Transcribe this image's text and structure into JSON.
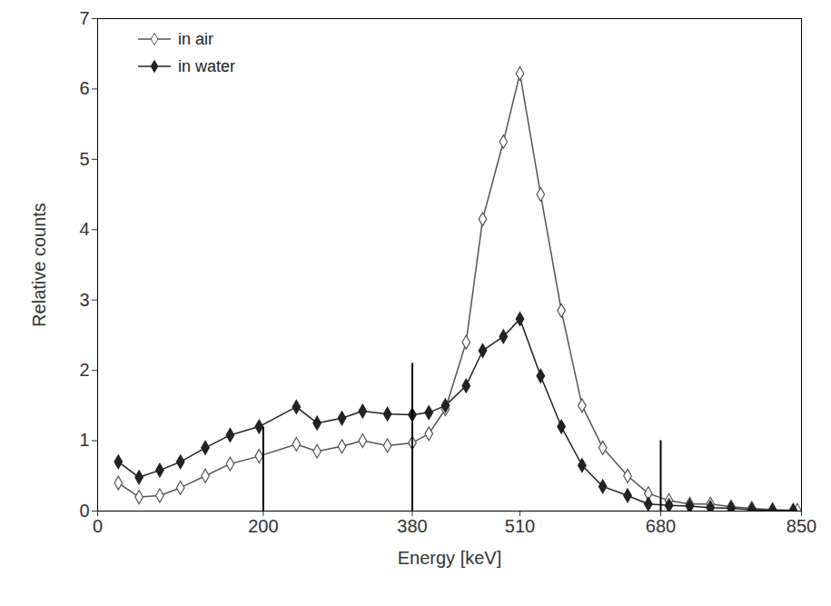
{
  "chart_data": {
    "type": "line",
    "x_label": "Energy [keV]",
    "y_label": "Relative counts",
    "xlim": [
      0,
      850
    ],
    "xticks": [
      0,
      200,
      380,
      510,
      680,
      850
    ],
    "ylim": [
      0,
      7
    ],
    "yticks": [
      0,
      1,
      2,
      3,
      4,
      5,
      6,
      7
    ],
    "legend": "upper left",
    "grid": false,
    "series": [
      {
        "name": "in air",
        "color": "#555555",
        "marker": "diamond_open",
        "x": [
          25,
          50,
          75,
          100,
          130,
          160,
          195,
          240,
          265,
          295,
          320,
          350,
          380,
          400,
          420,
          445,
          465,
          490,
          510,
          535,
          560,
          585,
          610,
          640,
          665,
          690,
          715,
          740,
          765,
          790,
          815,
          845
        ],
        "values": [
          0.4,
          0.2,
          0.22,
          0.33,
          0.5,
          0.67,
          0.78,
          0.95,
          0.85,
          0.92,
          1.0,
          0.93,
          0.97,
          1.1,
          1.45,
          2.4,
          4.15,
          5.25,
          6.22,
          4.5,
          2.85,
          1.5,
          0.9,
          0.5,
          0.25,
          0.15,
          0.1,
          0.1,
          0.06,
          0.04,
          0.02,
          0.01
        ]
      },
      {
        "name": "in water",
        "color": "#222222",
        "marker": "diamond",
        "x": [
          25,
          50,
          75,
          100,
          130,
          160,
          195,
          240,
          265,
          295,
          320,
          350,
          380,
          400,
          420,
          445,
          465,
          490,
          510,
          535,
          560,
          585,
          610,
          640,
          665,
          690,
          715,
          740,
          765,
          790,
          815,
          840
        ],
        "values": [
          0.7,
          0.48,
          0.58,
          0.7,
          0.9,
          1.08,
          1.2,
          1.48,
          1.25,
          1.32,
          1.42,
          1.38,
          1.37,
          1.4,
          1.5,
          1.78,
          2.28,
          2.48,
          2.73,
          1.92,
          1.2,
          0.65,
          0.35,
          0.22,
          0.1,
          0.08,
          0.07,
          0.05,
          0.04,
          0.02,
          0.01,
          0.01
        ]
      }
    ],
    "energy_windows": [
      {
        "x": 200,
        "y": 1.19
      },
      {
        "x": 380,
        "y": 2.1
      },
      {
        "x": 680,
        "y": 1.0
      }
    ]
  }
}
